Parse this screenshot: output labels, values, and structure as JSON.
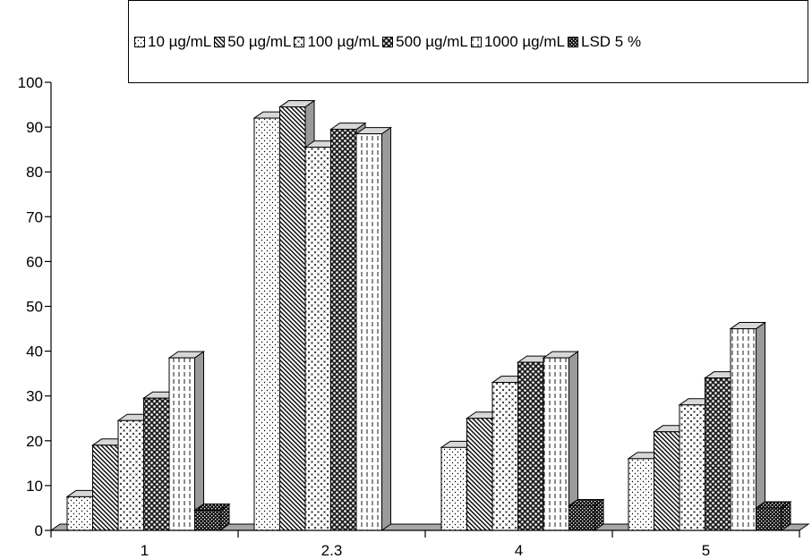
{
  "chart_data": {
    "type": "bar",
    "title": "",
    "xlabel": "",
    "ylabel": "",
    "categories": [
      "1",
      "2.3",
      "4",
      "5"
    ],
    "ylim": [
      0,
      100
    ],
    "yticks": [
      "0",
      "10",
      "20",
      "30",
      "40",
      "50",
      "60",
      "70",
      "80",
      "90",
      "100"
    ],
    "legend_position": "top",
    "series": [
      {
        "name": "10 µg/mL",
        "pattern": "dots",
        "values": [
          7.5,
          92,
          18.5,
          16
        ]
      },
      {
        "name": "50 µg/mL",
        "pattern": "diagonal",
        "values": [
          19,
          94.5,
          25,
          22
        ]
      },
      {
        "name": "100 µg/mL",
        "pattern": "crosses",
        "values": [
          24.5,
          85.5,
          33,
          28
        ]
      },
      {
        "name": "500 µg/mL",
        "pattern": "checker",
        "values": [
          29.5,
          89.5,
          37.5,
          34
        ]
      },
      {
        "name": "1000 µg/mL",
        "pattern": "dashes",
        "values": [
          38.5,
          88.5,
          38.5,
          45
        ]
      },
      {
        "name": "LSD 5 %",
        "pattern": "dark",
        "values": [
          4.5,
          0,
          5.5,
          5
        ]
      }
    ],
    "colors": {
      "face": "#ffffff",
      "side": "#9a9a9a",
      "top": "#d8d8d8",
      "floor": "#a8a8a8",
      "axis": "#000000"
    }
  }
}
